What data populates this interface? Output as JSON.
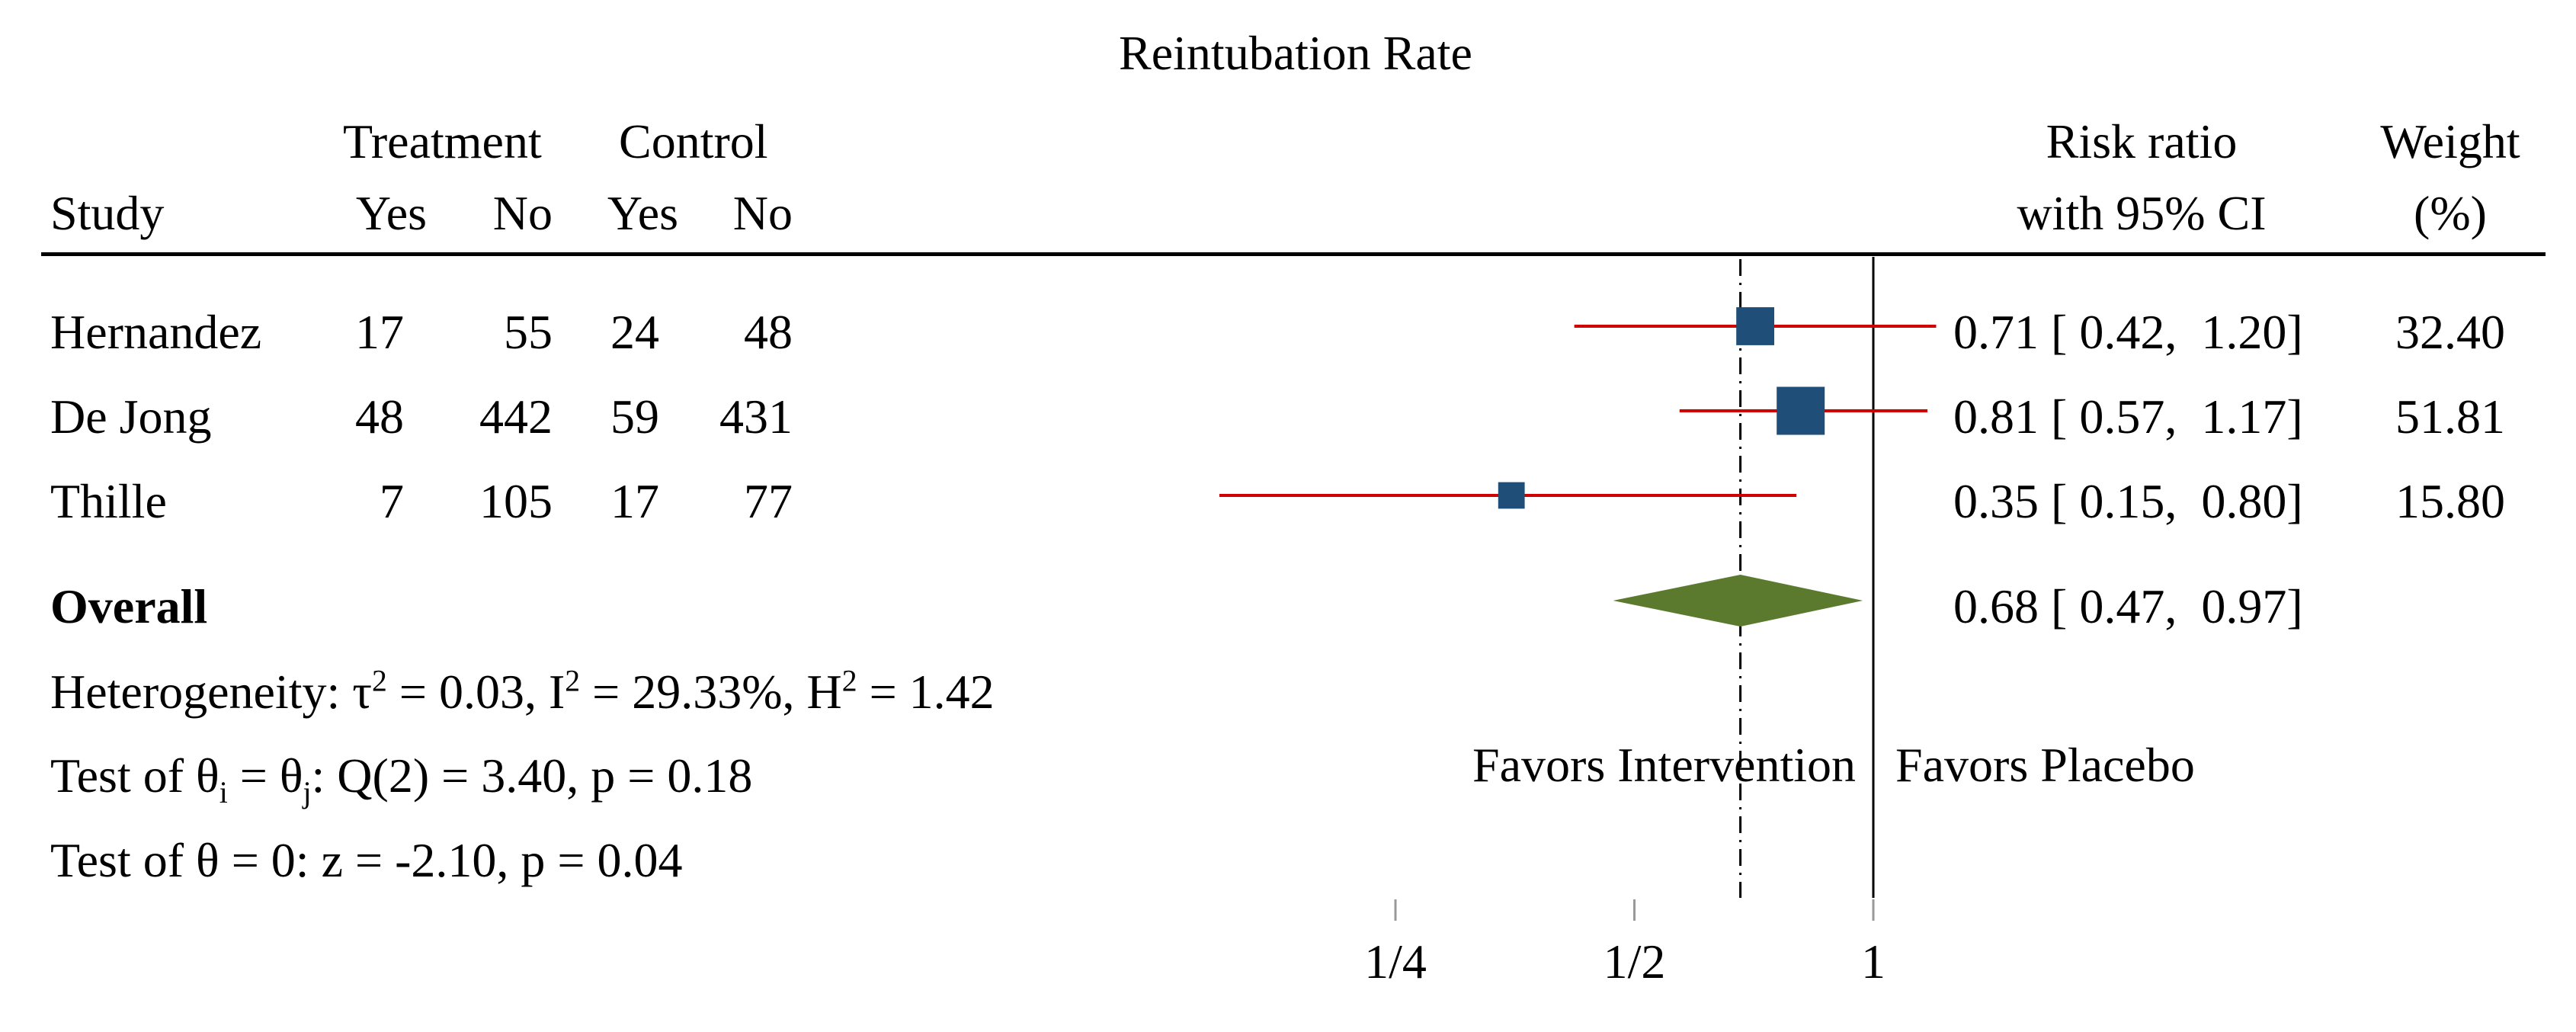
{
  "title": "Reintubation Rate",
  "columns": {
    "treatment": "Treatment",
    "control": "Control",
    "study": "Study",
    "yes": "Yes",
    "no": "No",
    "risk_ratio_line1": "Risk ratio",
    "risk_ratio_line2": "with 95% CI",
    "weight_line1": "Weight",
    "weight_line2": "(%)"
  },
  "studies": [
    {
      "name": "Hernandez",
      "t_yes": "17",
      "t_no": "55",
      "c_yes": "24",
      "c_no": "48",
      "ci_text": "0.71 [ 0.42,  1.20]",
      "weight": "32.40"
    },
    {
      "name": "De Jong",
      "t_yes": "48",
      "t_no": "442",
      "c_yes": "59",
      "c_no": "431",
      "ci_text": "0.81 [ 0.57,  1.17]",
      "weight": "51.81"
    },
    {
      "name": "Thille",
      "t_yes": "7",
      "t_no": "105",
      "c_yes": "17",
      "c_no": "77",
      "ci_text": "0.35 [ 0.15,  0.80]",
      "weight": "15.80"
    }
  ],
  "overall": {
    "label": "Overall",
    "ci_text": "0.68 [ 0.47,  0.97]"
  },
  "heterogeneity": {
    "prefix": "Heterogeneity: τ",
    "tau_sup": "2",
    "tau_rest": " = 0.03, I",
    "i_sup": "2",
    "i_rest": " = 29.33%, H",
    "h_sup": "2",
    "h_rest": " = 1.42"
  },
  "test_q": {
    "a": "Test of θ",
    "sub_i": "i",
    "b": " = θ",
    "sub_j": "j",
    "c": ": Q(2) = 3.40, p = 0.18"
  },
  "test_z": "Test of θ = 0: z = -2.10, p = 0.04",
  "favors_left": "Favors Intervention",
  "favors_right": "Favors Placebo",
  "colors": {
    "square": "#1f4e79",
    "ci_line": "#d00000",
    "diamond": "#5b7a2e",
    "null_line": "#000000",
    "overall_line": "#000000",
    "tick": "#999999"
  },
  "chart_data": {
    "type": "forest",
    "title": "Reintubation Rate",
    "scale": "log",
    "x_ticks": [
      {
        "value": 0.25,
        "label": "1/4"
      },
      {
        "value": 0.5,
        "label": "1/2"
      },
      {
        "value": 1,
        "label": "1"
      }
    ],
    "null_value": 1,
    "studies": [
      {
        "name": "Hernandez",
        "rr": 0.71,
        "lower": 0.42,
        "upper": 1.2,
        "weight": 32.4
      },
      {
        "name": "De Jong",
        "rr": 0.81,
        "lower": 0.57,
        "upper": 1.17,
        "weight": 51.81
      },
      {
        "name": "Thille",
        "rr": 0.35,
        "lower": 0.15,
        "upper": 0.8,
        "weight": 15.8
      }
    ],
    "overall": {
      "rr": 0.68,
      "lower": 0.47,
      "upper": 0.97
    }
  }
}
